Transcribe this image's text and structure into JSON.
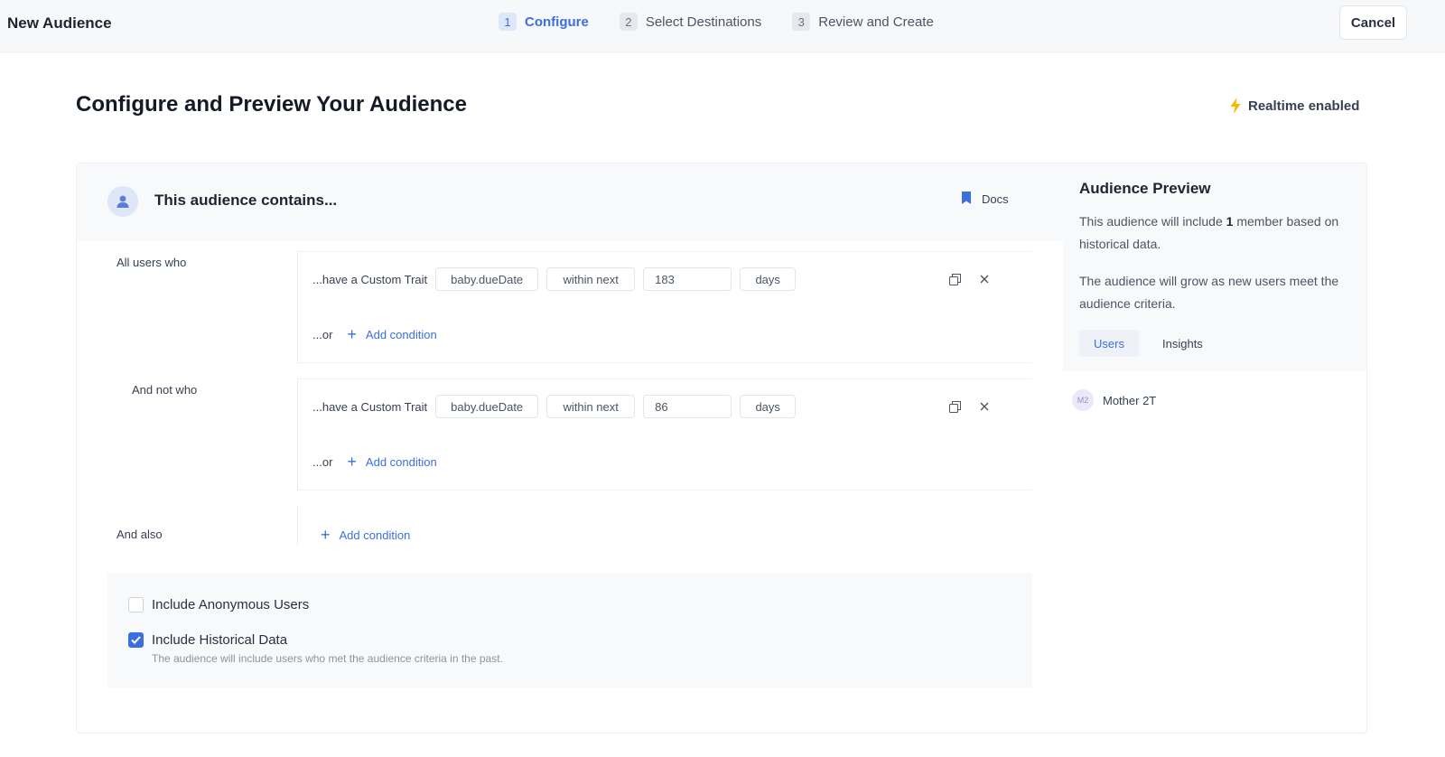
{
  "header": {
    "title": "New Audience",
    "steps": [
      {
        "num": "1",
        "label": "Configure"
      },
      {
        "num": "2",
        "label": "Select Destinations"
      },
      {
        "num": "3",
        "label": "Review and Create"
      }
    ],
    "active_step": "1",
    "cancel_label": "Cancel"
  },
  "page": {
    "title": "Configure and Preview Your Audience",
    "realtime_label": "Realtime enabled"
  },
  "builder": {
    "header_title": "This audience contains...",
    "docs_label": "Docs",
    "groups": [
      {
        "label": "All users who",
        "condition": {
          "prefix": "...have a Custom Trait",
          "trait": "baby.dueDate",
          "operator": "within next",
          "value": "183",
          "unit": "days"
        },
        "or_label": "...or",
        "add_label": "Add condition"
      },
      {
        "label": "And not who",
        "condition": {
          "prefix": "...have a Custom Trait",
          "trait": "baby.dueDate",
          "operator": "within next",
          "value": "86",
          "unit": "days"
        },
        "or_label": "...or",
        "add_label": "Add condition"
      }
    ],
    "also": {
      "label": "And also",
      "add_label": "Add condition"
    },
    "options": {
      "anonymous": {
        "label": "Include Anonymous Users",
        "checked": false
      },
      "historical": {
        "label": "Include Historical Data",
        "checked": true,
        "help": "The audience will include users who met the audience criteria in the past."
      }
    }
  },
  "preview": {
    "title": "Audience Preview",
    "text1_pre": "This audience will include ",
    "text1_count": "1",
    "text1_post": " member based on historical data.",
    "text2": "The audience will grow as new users meet the audience criteria.",
    "tabs": [
      "Users",
      "Insights"
    ],
    "active_tab": "Users",
    "members": [
      {
        "initials": "M2",
        "name": "Mother 2T"
      }
    ]
  },
  "colors": {
    "accent": "#3b6fe0",
    "bolt": "#f5b800"
  },
  "icons": {
    "realtime": "bolt-icon",
    "docs": "bookmark-icon",
    "builder": "user-icon",
    "copy": "copy-icon",
    "remove": "close-icon"
  }
}
